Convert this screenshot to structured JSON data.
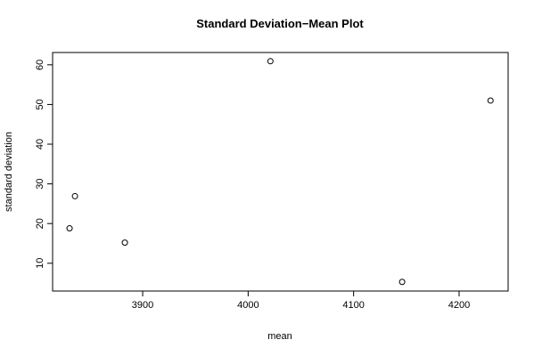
{
  "chart_data": {
    "type": "scatter",
    "title": "Standard Deviation−Mean Plot",
    "x_label": "mean",
    "y_label": "standard deviation",
    "x": [
      3830.7,
      3835.8,
      3883.1,
      4021.1,
      4146.0,
      4229.8
    ],
    "values": [
      18.8,
      26.9,
      15.2,
      60.9,
      5.3,
      51.0
    ],
    "color": "#000000",
    "xlim": [
      3814.6,
      4246.5
    ],
    "xticks": [
      3900,
      4000,
      4100,
      4200
    ],
    "ylim": [
      3.0,
      63.1
    ],
    "yticks": [
      10,
      20,
      30,
      40,
      50,
      60
    ]
  }
}
